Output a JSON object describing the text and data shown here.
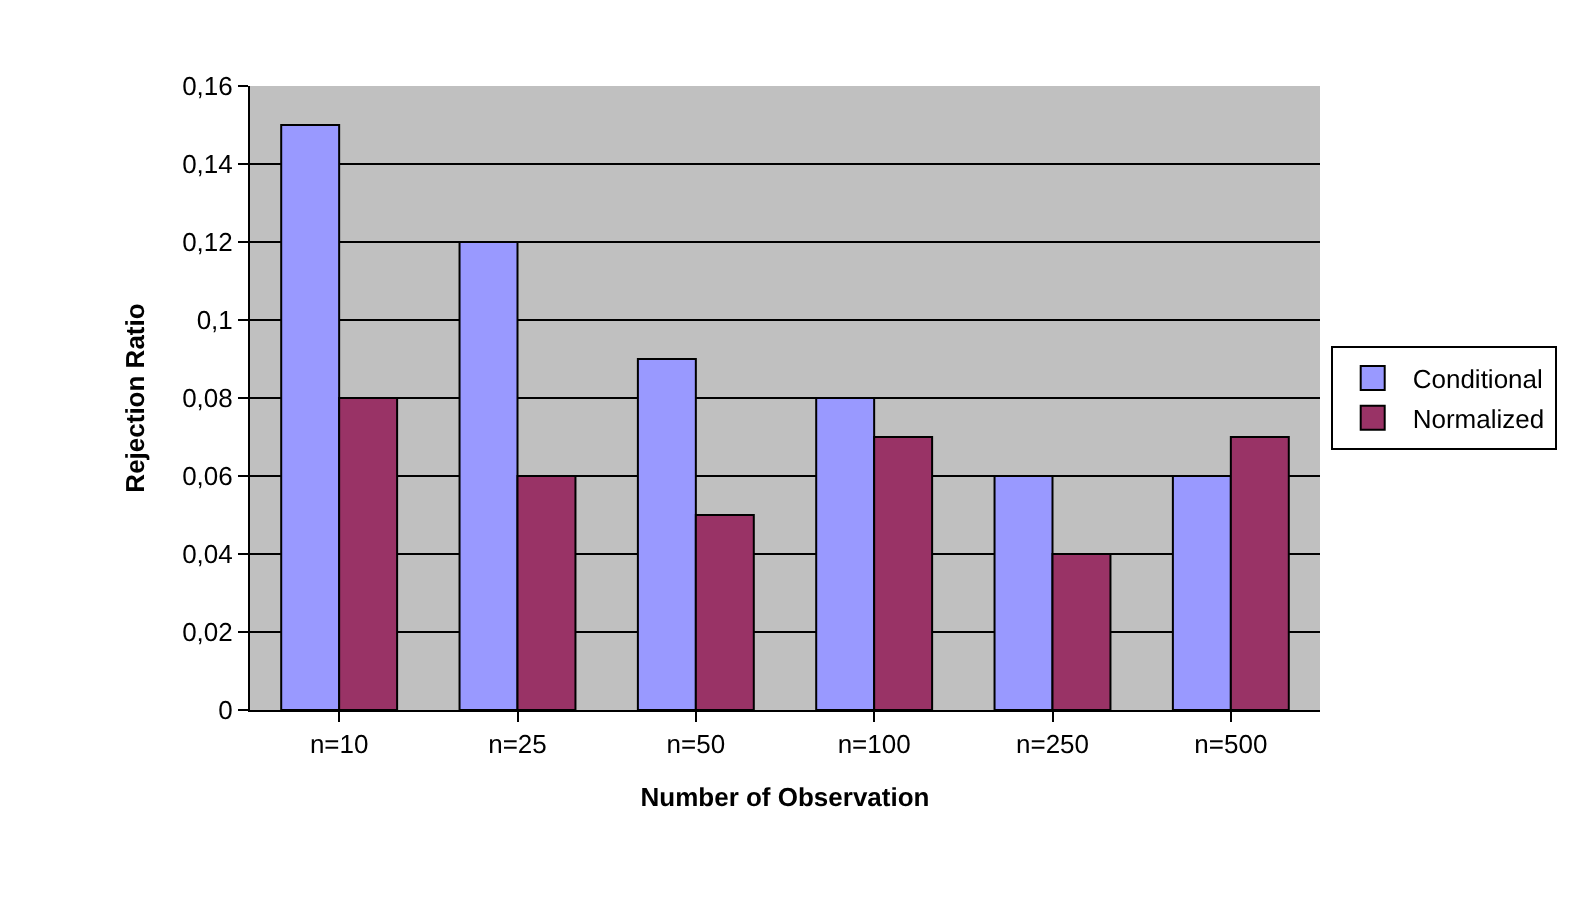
{
  "chart_data": {
    "type": "bar",
    "xlabel": "Number of Observation",
    "ylabel": "Rejection Ratio",
    "categories": [
      "n=10",
      "n=25",
      "n=50",
      "n=100",
      "n=250",
      "n=500"
    ],
    "series": [
      {
        "name": "Conditional",
        "color": "#9999ff",
        "values": [
          0.15,
          0.12,
          0.09,
          0.08,
          0.06,
          0.06
        ]
      },
      {
        "name": "Normalized",
        "color": "#993366",
        "values": [
          0.08,
          0.06,
          0.05,
          0.07,
          0.04,
          0.07
        ]
      }
    ],
    "ylim": [
      0,
      0.16
    ],
    "yticks": [
      {
        "value": 0,
        "label": "0"
      },
      {
        "value": 0.02,
        "label": "0,02"
      },
      {
        "value": 0.04,
        "label": "0,04"
      },
      {
        "value": 0.06,
        "label": "0,06"
      },
      {
        "value": 0.08,
        "label": "0,08"
      },
      {
        "value": 0.1,
        "label": "0,1"
      },
      {
        "value": 0.12,
        "label": "0,12"
      },
      {
        "value": 0.14,
        "label": "0,14"
      },
      {
        "value": 0.16,
        "label": "0,16"
      }
    ],
    "grid": "y",
    "legend": "right"
  }
}
